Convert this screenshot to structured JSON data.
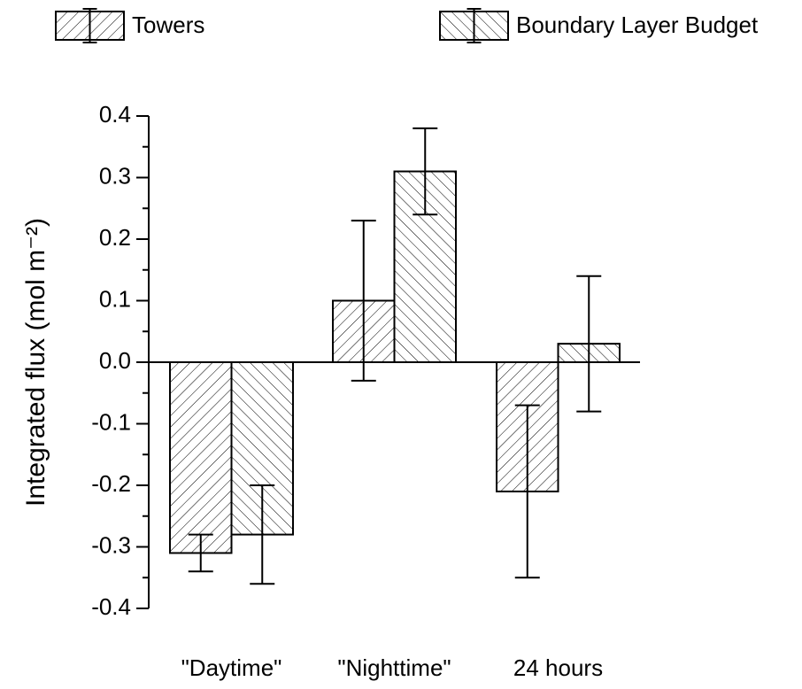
{
  "chart_data": {
    "type": "bar",
    "y_label": "Integrated flux (mol m⁻²)",
    "categories": [
      "\"Daytime\"",
      "\"Nighttime\"",
      "24 hours"
    ],
    "series": [
      {
        "name": "Towers",
        "pattern": "forward-hatch",
        "color": "#000000",
        "values": [
          -0.31,
          0.1,
          -0.21
        ],
        "errors": [
          0.03,
          0.13,
          0.14
        ]
      },
      {
        "name": "Boundary Layer Budget",
        "pattern": "back-hatch",
        "color": "#000000",
        "values": [
          -0.28,
          0.31,
          0.03
        ],
        "errors": [
          0.08,
          0.07,
          0.11
        ]
      }
    ],
    "ylim": [
      -0.4,
      0.4
    ],
    "yticks": [
      -0.4,
      -0.3,
      -0.2,
      -0.1,
      {
        "value": 0,
        "label": "0.0"
      },
      0.1,
      0.2,
      0.3,
      0.4
    ],
    "legend": "top"
  }
}
